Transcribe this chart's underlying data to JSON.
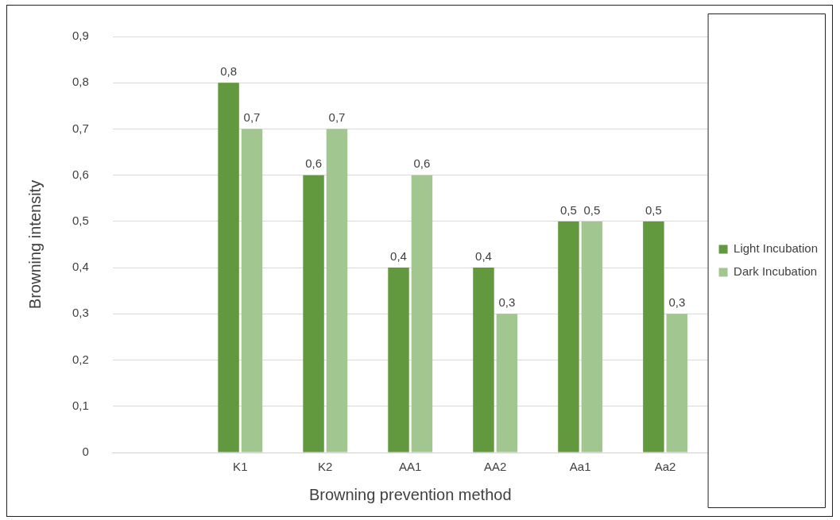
{
  "chart_data": {
    "type": "bar",
    "xlabel": "Browning prevention method",
    "ylabel": "Browning intensity",
    "categories": [
      null,
      "K1",
      "K2",
      "AA1",
      "AA2",
      "Aa1",
      "Aa2"
    ],
    "series": [
      {
        "name": "Light Incubation",
        "color": "#62993e",
        "values": [
          null,
          0.8,
          0.6,
          0.4,
          0.4,
          0.5,
          0.5
        ],
        "value_labels": [
          null,
          "0,8",
          "0,6",
          "0,4",
          "0,4",
          "0,5",
          "0,5"
        ]
      },
      {
        "name": "Dark Incubation",
        "color": "#a2c690",
        "values": [
          null,
          0.7,
          0.7,
          0.6,
          0.3,
          0.5,
          0.3
        ],
        "value_labels": [
          null,
          "0,7",
          "0,7",
          "0,6",
          "0,3",
          "0,5",
          "0,3"
        ]
      }
    ],
    "ylim": [
      0,
      0.9
    ],
    "yticks": [
      0,
      {
        "value": 0.1,
        "label": "0,1"
      },
      {
        "value": 0.2,
        "label": "0,2"
      },
      {
        "value": 0.3,
        "label": "0,3"
      },
      {
        "value": 0.4,
        "label": "0,4"
      },
      {
        "value": 0.5,
        "label": "0,5"
      },
      {
        "value": 0.6,
        "label": "0,6"
      },
      {
        "value": 0.7,
        "label": "0,7"
      },
      {
        "value": 0.8,
        "label": "0,8"
      },
      {
        "value": 0.9,
        "label": "0,9"
      }
    ],
    "grid": "y",
    "legend": "right"
  }
}
